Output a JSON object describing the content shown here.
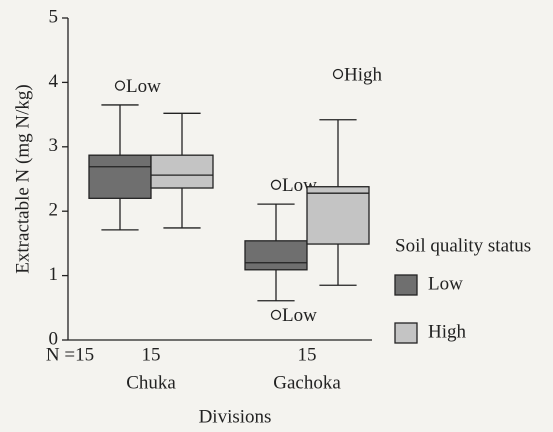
{
  "chart_data": {
    "type": "box",
    "y_label": "Extractable N (mg N/kg)",
    "x_label": "Divisions",
    "categories": [
      "Chuka",
      "Gachoka"
    ],
    "n_labels": [
      "N =15",
      "15",
      "15"
    ],
    "ylim": [
      0,
      5
    ],
    "yticks": [
      0,
      1,
      2,
      3,
      4,
      5
    ],
    "legend_title": "Soil quality status",
    "legend": "right",
    "series": [
      {
        "name": "Low",
        "color": "#6f6f6f",
        "boxes": [
          {
            "min": 1.71,
            "q1": 2.2,
            "median": 2.69,
            "q3": 2.87,
            "max": 3.65
          },
          {
            "min": 0.61,
            "q1": 1.09,
            "median": 1.2,
            "q3": 1.54,
            "max": 2.11
          }
        ],
        "outliers": [
          [
            {
              "value": 3.95,
              "annotation": "Low"
            }
          ],
          [
            {
              "value": 2.41,
              "annotation": "Low"
            },
            {
              "value": 0.39,
              "annotation": "Low"
            }
          ]
        ]
      },
      {
        "name": "High",
        "color": "#c4c4c4",
        "boxes": [
          {
            "min": 1.74,
            "q1": 2.36,
            "median": 2.56,
            "q3": 2.87,
            "max": 3.52
          },
          {
            "min": 0.85,
            "q1": 1.49,
            "median": 2.28,
            "q3": 2.38,
            "max": 3.42
          }
        ],
        "outliers": [
          [],
          [
            {
              "value": 4.13,
              "annotation": "High"
            }
          ]
        ]
      }
    ]
  }
}
